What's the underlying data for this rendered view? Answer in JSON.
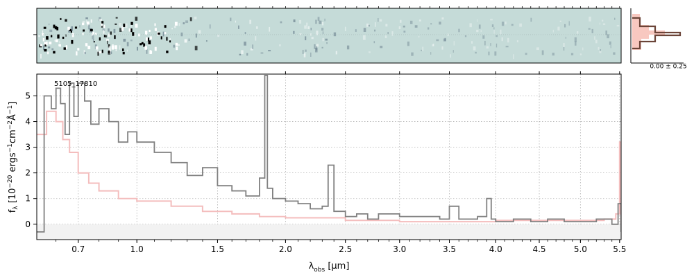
{
  "chart_data": [
    {
      "panel": "2d-spectrum",
      "type": "heatmap",
      "background_color": "#c5dbd8",
      "ink_color": "#000000"
    },
    {
      "panel": "1d-spectrum",
      "type": "line",
      "object_id": "5105_17810",
      "xlabel_prefix": "λ",
      "xlabel_sub": "obs",
      "xlabel_unit": " [μm]",
      "ylabel": "f_λ [10^-20 ergs^-1cm^-2Å^-1]",
      "xlim": [
        0.52,
        5.52
      ],
      "ylim": [
        -0.6,
        5.85
      ],
      "x_scale": "power-law (λ^0.5)",
      "x_ticks": [
        0.7,
        1.0,
        1.5,
        2.0,
        2.5,
        3.0,
        3.5,
        4.0,
        4.5,
        5.0,
        5.5
      ],
      "x_tick_labels": [
        "0.7",
        "1.0",
        "1.5",
        "2.0",
        "2.5",
        "3.0",
        "3.5",
        "4.0",
        "4.5",
        "5.0",
        "5.5"
      ],
      "y_ticks": [
        0,
        1,
        2,
        3,
        4,
        5
      ],
      "y_tick_labels": [
        "0",
        "1",
        "2",
        "3",
        "4",
        "5"
      ],
      "grid": true,
      "series": [
        {
          "role": "flux",
          "color": "#808080",
          "style": "steps",
          "x": [
            0.52,
            0.55,
            0.58,
            0.6,
            0.62,
            0.64,
            0.66,
            0.68,
            0.7,
            0.73,
            0.76,
            0.8,
            0.85,
            0.9,
            0.95,
            1.0,
            1.1,
            1.2,
            1.3,
            1.4,
            1.5,
            1.6,
            1.7,
            1.8,
            1.84,
            1.86,
            1.9,
            2.0,
            2.1,
            2.2,
            2.3,
            2.35,
            2.4,
            2.45,
            2.5,
            2.6,
            2.7,
            2.8,
            3.0,
            3.2,
            3.4,
            3.5,
            3.6,
            3.8,
            3.9,
            3.95,
            4.0,
            4.2,
            4.4,
            4.6,
            4.8,
            5.0,
            5.2,
            5.4,
            5.48,
            5.52
          ],
          "y": [
            -0.3,
            5.0,
            4.5,
            5.3,
            4.7,
            3.5,
            5.5,
            4.2,
            5.5,
            4.8,
            3.9,
            4.5,
            4.0,
            3.2,
            3.6,
            3.2,
            2.8,
            2.4,
            1.9,
            2.2,
            1.5,
            1.3,
            1.1,
            1.8,
            5.8,
            1.4,
            1.0,
            0.9,
            0.8,
            0.6,
            0.7,
            2.3,
            0.5,
            0.5,
            0.3,
            0.4,
            0.2,
            0.4,
            0.3,
            0.3,
            0.2,
            0.7,
            0.2,
            0.3,
            1.0,
            0.2,
            0.1,
            0.2,
            0.1,
            0.2,
            0.1,
            0.1,
            0.2,
            0.0,
            0.8,
            -0.3
          ]
        },
        {
          "role": "model",
          "color": "#f4bdbd",
          "style": "steps",
          "x": [
            0.52,
            0.56,
            0.6,
            0.63,
            0.66,
            0.7,
            0.75,
            0.8,
            0.9,
            1.0,
            1.2,
            1.4,
            1.6,
            1.8,
            2.0,
            2.5,
            3.0,
            3.5,
            4.0,
            4.5,
            5.0,
            5.3,
            5.45,
            5.5,
            5.52
          ],
          "y": [
            3.5,
            4.4,
            4.0,
            3.3,
            2.8,
            2.0,
            1.6,
            1.3,
            1.0,
            0.9,
            0.7,
            0.5,
            0.4,
            0.3,
            0.25,
            0.15,
            0.1,
            0.1,
            0.15,
            0.15,
            0.15,
            0.2,
            0.4,
            3.2,
            0.0
          ]
        }
      ]
    },
    {
      "panel": "cross-dispersion-histogram",
      "type": "line",
      "label": "0.00 ± 0.25",
      "line_color": "#6b4438",
      "fill_color": "#f8c8c0"
    }
  ]
}
